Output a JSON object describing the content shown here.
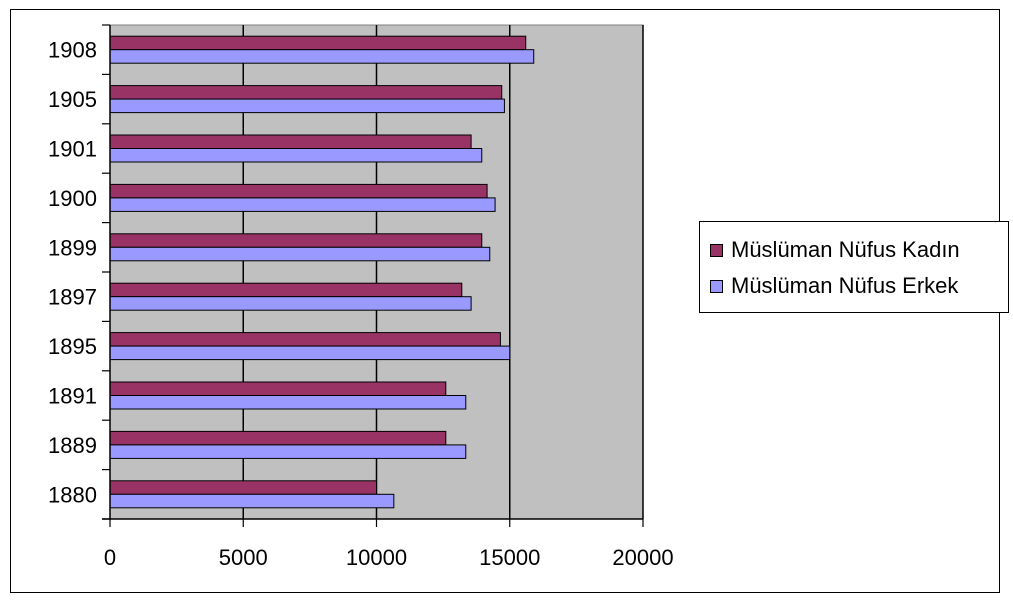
{
  "chart_data": {
    "type": "bar",
    "orientation": "horizontal",
    "categories": [
      "1880",
      "1889",
      "1891",
      "1895",
      "1897",
      "1899",
      "1900",
      "1901",
      "1905",
      "1908"
    ],
    "series": [
      {
        "name": "Müslüman Nüfus Kadın",
        "color": "#993366",
        "values": [
          10000,
          12600,
          12600,
          14650,
          13200,
          13950,
          14150,
          13550,
          14700,
          15600
        ]
      },
      {
        "name": "Müslüman Nüfus Erkek",
        "color": "#9999FF",
        "values": [
          10650,
          13350,
          13350,
          15000,
          13550,
          14250,
          14450,
          13950,
          14800,
          15900
        ]
      }
    ],
    "xlim": [
      0,
      20000
    ],
    "xticks": [
      "0",
      "5000",
      "10000",
      "15000",
      "20000"
    ],
    "xlabel": "",
    "ylabel": "",
    "title": "",
    "grid": "vertical",
    "plot_background": "#C0C0C0",
    "legend_position": "right"
  }
}
